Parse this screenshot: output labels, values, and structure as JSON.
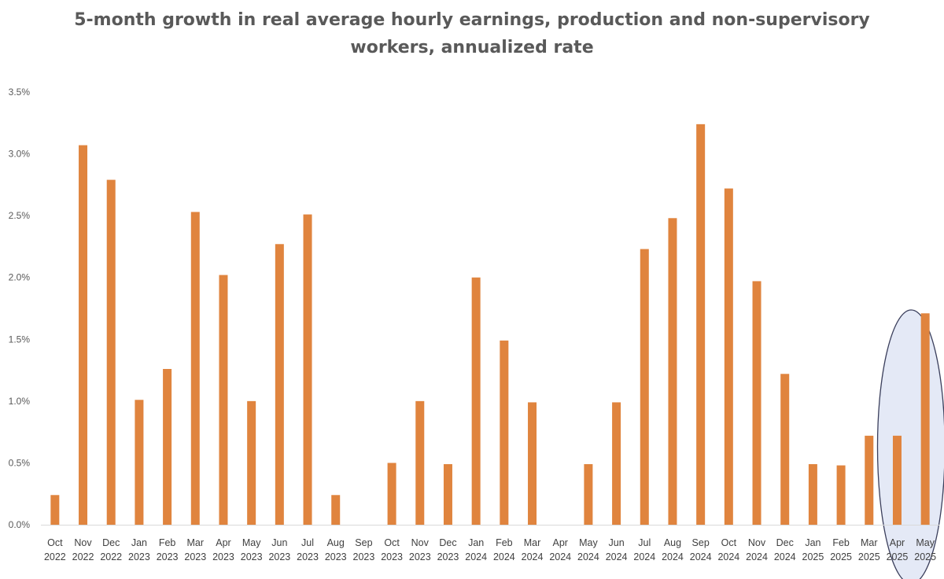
{
  "chart_data": {
    "type": "bar",
    "title_lines": [
      "5-month growth in real average hourly earnings, production and non-supervisory",
      "workers, annualized rate"
    ],
    "xlabel": "",
    "ylabel": "",
    "ylim": [
      0,
      3.5
    ],
    "yticks": [
      0,
      0.5,
      1.0,
      1.5,
      2.0,
      2.5,
      3.0,
      3.5
    ],
    "ytick_labels": [
      "0.0%",
      "0.5%",
      "1.0%",
      "1.5%",
      "2.0%",
      "2.5%",
      "3.0%",
      "3.5%"
    ],
    "grid": false,
    "legend": "none",
    "bar_color": "#E0843E",
    "highlight_color": "#E4E9F6",
    "highlight_stroke": "#3B3F5C",
    "highlight_categories": [
      "Apr 2025",
      "May 2025"
    ],
    "categories": [
      [
        "Oct",
        "2022"
      ],
      [
        "Nov",
        "2022"
      ],
      [
        "Dec",
        "2022"
      ],
      [
        "Jan",
        "2023"
      ],
      [
        "Feb",
        "2023"
      ],
      [
        "Mar",
        "2023"
      ],
      [
        "Apr",
        "2023"
      ],
      [
        "May",
        "2023"
      ],
      [
        "Jun",
        "2023"
      ],
      [
        "Jul",
        "2023"
      ],
      [
        "Aug",
        "2023"
      ],
      [
        "Sep",
        "2023"
      ],
      [
        "Oct",
        "2023"
      ],
      [
        "Nov",
        "2023"
      ],
      [
        "Dec",
        "2023"
      ],
      [
        "Jan",
        "2024"
      ],
      [
        "Feb",
        "2024"
      ],
      [
        "Mar",
        "2024"
      ],
      [
        "Apr",
        "2024"
      ],
      [
        "May",
        "2024"
      ],
      [
        "Jun",
        "2024"
      ],
      [
        "Jul",
        "2024"
      ],
      [
        "Aug",
        "2024"
      ],
      [
        "Sep",
        "2024"
      ],
      [
        "Oct",
        "2024"
      ],
      [
        "Nov",
        "2024"
      ],
      [
        "Dec",
        "2024"
      ],
      [
        "Jan",
        "2025"
      ],
      [
        "Feb",
        "2025"
      ],
      [
        "Mar",
        "2025"
      ],
      [
        "Apr",
        "2025"
      ],
      [
        "May",
        "2025"
      ]
    ],
    "values": [
      0.24,
      3.07,
      2.79,
      1.01,
      1.26,
      2.53,
      2.02,
      1.0,
      2.27,
      2.51,
      0.24,
      0.0,
      0.5,
      1.0,
      0.49,
      2.0,
      1.49,
      0.99,
      0.0,
      0.49,
      0.99,
      2.23,
      2.48,
      3.24,
      2.72,
      1.97,
      1.22,
      0.49,
      0.48,
      0.72,
      0.72,
      1.71
    ]
  }
}
